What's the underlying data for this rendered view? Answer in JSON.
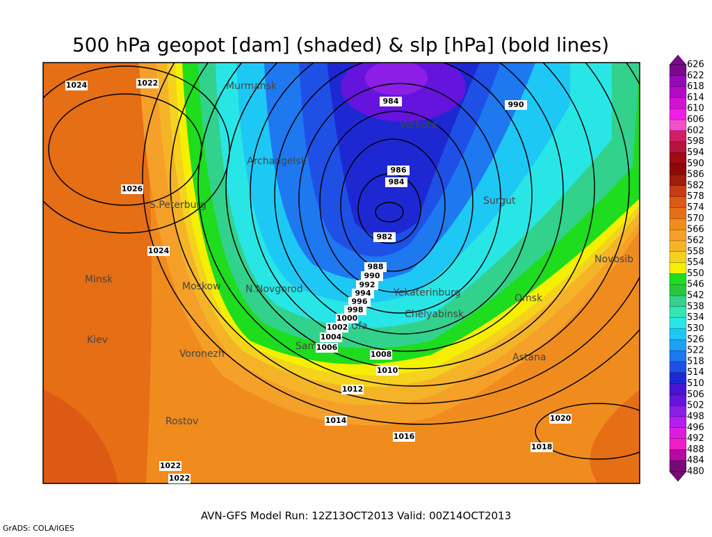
{
  "title": "500 hPa geopot [dam] (shaded) & slp [hPa] (bold lines)",
  "footer": "AVN-GFS Model Run: 12Z13OCT2013 Valid: 00Z14OCT2013",
  "credit": "GrADS: COLA/IGES",
  "cities": [
    "Murmansk",
    "Vorkuta",
    "Archangelsk",
    "Surgut",
    "S.Peterburg",
    "Novosib",
    "Minsk",
    "Moskow",
    "N.Novgorod",
    "Yekaterinburg",
    "Omsk",
    "Chelyabinsk",
    "Ufa",
    "Kiev",
    "Samara",
    "Voronezh",
    "Astana",
    "Rostov"
  ],
  "isobar_labels": [
    1024,
    1022,
    984,
    990,
    986,
    984,
    1026,
    982,
    1024,
    988,
    990,
    992,
    994,
    996,
    998,
    1000,
    1002,
    1004,
    1006,
    1008,
    1010,
    1012,
    1014,
    1016,
    1020,
    1018,
    1022,
    1022
  ],
  "colorbar": {
    "labels": [
      626,
      622,
      618,
      614,
      610,
      606,
      602,
      598,
      594,
      590,
      586,
      582,
      578,
      574,
      570,
      566,
      562,
      558,
      554,
      550,
      546,
      542,
      538,
      534,
      530,
      526,
      522,
      518,
      514,
      510,
      506,
      502,
      498,
      496,
      492,
      488,
      484,
      480
    ],
    "colors": [
      "#7a0a8c",
      "#960ab4",
      "#b40ac8",
      "#d214d2",
      "#f01ee6",
      "#f050c8",
      "#d21e64",
      "#b4143c",
      "#a00a14",
      "#8c0a0a",
      "#a01e0a",
      "#c83c14",
      "#dc5a14",
      "#e66e14",
      "#f08c1e",
      "#f5a028",
      "#f5b428",
      "#f5d21e",
      "#f5f000",
      "#1edc1e",
      "#28c83c",
      "#32d28c",
      "#32e6b4",
      "#28e6e6",
      "#1ec8f5",
      "#1ea0f5",
      "#1e78f0",
      "#1e50e6",
      "#1e28d2",
      "#4614d2",
      "#6414dc",
      "#8c1ee6",
      "#b41ef0",
      "#dc1edc",
      "#f01ec8",
      "#b40aa0",
      "#780a78"
    ]
  }
}
